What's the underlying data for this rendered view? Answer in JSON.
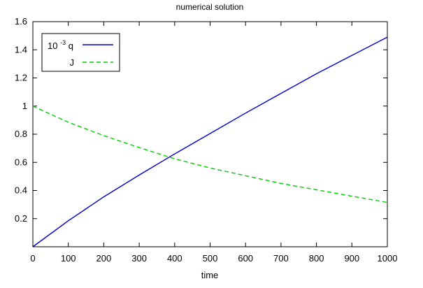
{
  "chart_data": {
    "type": "line",
    "title": "numerical solution",
    "xlabel": "time",
    "ylabel": "",
    "xlim": [
      0,
      1000
    ],
    "ylim": [
      0,
      1.6
    ],
    "x_ticks": [
      0,
      100,
      200,
      300,
      400,
      500,
      600,
      700,
      800,
      900,
      1000
    ],
    "y_ticks": [
      0.2,
      0.4,
      0.6,
      0.8,
      1,
      1.2,
      1.4,
      1.6
    ],
    "grid": false,
    "legend_position": "top-left",
    "series": [
      {
        "name": "10^-3 q",
        "legend_base": "10",
        "legend_exp": "-3",
        "legend_tail": "q",
        "color": "#0000cc",
        "style": "solid",
        "x": [
          0,
          100,
          200,
          300,
          400,
          500,
          600,
          700,
          800,
          900,
          1000
        ],
        "values": [
          0,
          0.185,
          0.355,
          0.51,
          0.66,
          0.805,
          0.95,
          1.09,
          1.23,
          1.36,
          1.49
        ]
      },
      {
        "name": "J",
        "legend_label": "J",
        "color": "#00cc00",
        "style": "dashed",
        "x": [
          0,
          100,
          200,
          300,
          400,
          500,
          600,
          700,
          800,
          900,
          1000
        ],
        "values": [
          1.0,
          0.885,
          0.79,
          0.705,
          0.625,
          0.56,
          0.505,
          0.45,
          0.405,
          0.36,
          0.315
        ]
      }
    ]
  }
}
